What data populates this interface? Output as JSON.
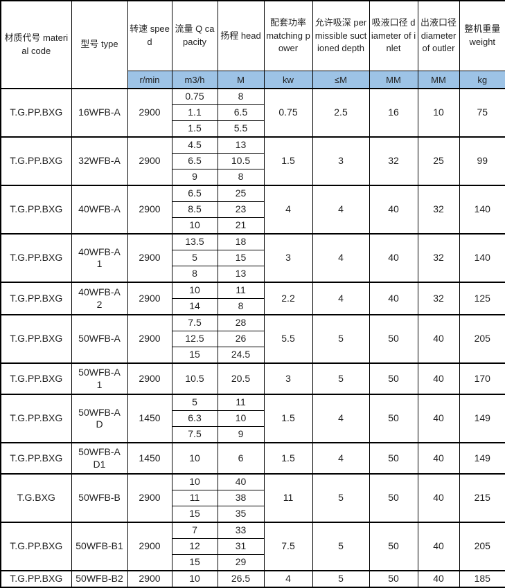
{
  "colors": {
    "unit_row_bg": "#9DC3E6",
    "border": "#000000",
    "text": "#1f1f1f"
  },
  "table": {
    "columns": [
      {
        "id": "material_code",
        "label": "材质代号 material code",
        "unit": ""
      },
      {
        "id": "type",
        "label": "型号 type",
        "unit": ""
      },
      {
        "id": "speed",
        "label": "转速 speed",
        "unit": "r/min"
      },
      {
        "id": "capacity",
        "label": "流量 Q capacity",
        "unit": "m3/h"
      },
      {
        "id": "head",
        "label": "扬程 head",
        "unit": "M"
      },
      {
        "id": "power",
        "label": "配套功率 matching power",
        "unit": "kw"
      },
      {
        "id": "suction_depth",
        "label": "允许吸深 permissible suctioned depth",
        "unit": "≤M"
      },
      {
        "id": "inlet",
        "label": "吸液口径 diameter of inlet",
        "unit": "MM"
      },
      {
        "id": "outlet",
        "label": "出液口径 diameter of outler",
        "unit": "MM"
      },
      {
        "id": "weight",
        "label": "整机重量 weight",
        "unit": "kg"
      }
    ],
    "groups": [
      {
        "material": "T.G.PP.BXG",
        "type": "16WFB-A",
        "speed": "2900",
        "capacity": [
          "0.75",
          "1.1",
          "1.5"
        ],
        "head": [
          "8",
          "6.5",
          "5.5"
        ],
        "power": "0.75",
        "suction_depth": "2.5",
        "inlet": "16",
        "outlet": "10",
        "weight": "75"
      },
      {
        "material": "T.G.PP.BXG",
        "type": "32WFB-A",
        "speed": "2900",
        "capacity": [
          "4.5",
          "6.5",
          "9"
        ],
        "head": [
          "13",
          "10.5",
          "8"
        ],
        "power": "1.5",
        "suction_depth": "3",
        "inlet": "32",
        "outlet": "25",
        "weight": "99"
      },
      {
        "material": "T.G.PP.BXG",
        "type": "40WFB-A",
        "speed": "2900",
        "capacity": [
          "6.5",
          "8.5",
          "10"
        ],
        "head": [
          "25",
          "23",
          "21"
        ],
        "power": "4",
        "suction_depth": "4",
        "inlet": "40",
        "outlet": "32",
        "weight": "140"
      },
      {
        "material": "T.G.PP.BXG",
        "type": "40WFB-A\n1",
        "speed": "2900",
        "capacity": [
          "13.5",
          "5",
          "8"
        ],
        "head": [
          "18",
          "15",
          "13"
        ],
        "power": "3",
        "suction_depth": "4",
        "inlet": "40",
        "outlet": "32",
        "weight": "140"
      },
      {
        "material": "T.G.PP.BXG",
        "type": "40WFB-A\n2",
        "speed": "2900",
        "capacity": [
          "10",
          "14"
        ],
        "head": [
          "11",
          "8"
        ],
        "power": "2.2",
        "suction_depth": "4",
        "inlet": "40",
        "outlet": "32",
        "weight": "125"
      },
      {
        "material": "T.G.PP.BXG",
        "type": "50WFB-A",
        "speed": "2900",
        "capacity": [
          "7.5",
          "12.5",
          "15"
        ],
        "head": [
          "28",
          "26",
          "24.5"
        ],
        "power": "5.5",
        "suction_depth": "5",
        "inlet": "50",
        "outlet": "40",
        "weight": "205"
      },
      {
        "material": "T.G.PP.BXG",
        "type": "50WFB-A\n1",
        "speed": "2900",
        "capacity": [
          "10.5"
        ],
        "head": [
          "20.5"
        ],
        "power": "3",
        "suction_depth": "5",
        "inlet": "50",
        "outlet": "40",
        "weight": "170"
      },
      {
        "material": "T.G.PP.BXG",
        "type": "50WFB-A\nD",
        "speed": "1450",
        "capacity": [
          "5",
          "6.3",
          "7.5"
        ],
        "head": [
          "11",
          "10",
          "9"
        ],
        "power": "1.5",
        "suction_depth": "4",
        "inlet": "50",
        "outlet": "40",
        "weight": "149"
      },
      {
        "material": "T.G.PP.BXG",
        "type": "50WFB-A\nD1",
        "speed": "1450",
        "capacity": [
          "10"
        ],
        "head": [
          "6"
        ],
        "power": "1.5",
        "suction_depth": "4",
        "inlet": "50",
        "outlet": "40",
        "weight": "149"
      },
      {
        "material": "T.G.BXG",
        "type": "50WFB-B",
        "speed": "2900",
        "capacity": [
          "10",
          "11",
          "15"
        ],
        "head": [
          "40",
          "38",
          "35"
        ],
        "power": "11",
        "suction_depth": "5",
        "inlet": "50",
        "outlet": "40",
        "weight": "215"
      },
      {
        "material": "T.G.PP.BXG",
        "type": "50WFB-B1",
        "speed": "2900",
        "capacity": [
          "7",
          "12",
          "15"
        ],
        "head": [
          "33",
          "31",
          "29"
        ],
        "power": "7.5",
        "suction_depth": "5",
        "inlet": "50",
        "outlet": "40",
        "weight": "205"
      },
      {
        "material": "T.G.PP.BXG",
        "type": "50WFB-B2",
        "speed": "2900",
        "capacity": [
          "10"
        ],
        "head": [
          "26.5"
        ],
        "power": "4",
        "suction_depth": "5",
        "inlet": "50",
        "outlet": "40",
        "weight": "185"
      }
    ]
  }
}
